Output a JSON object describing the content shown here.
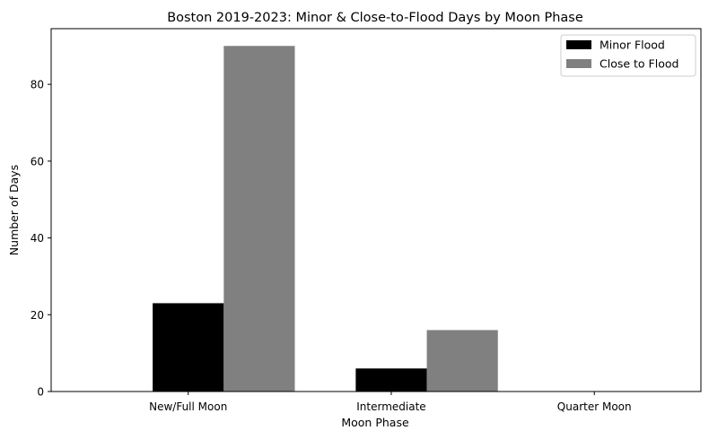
{
  "chart_data": {
    "type": "bar",
    "title": "Boston 2019-2023: Minor & Close-to-Flood Days by Moon Phase",
    "xlabel": "Moon Phase",
    "ylabel": "Number of Days",
    "categories": [
      "New/Full Moon",
      "Intermediate",
      "Quarter Moon"
    ],
    "series": [
      {
        "name": "Minor Flood",
        "values": [
          23,
          6,
          0
        ],
        "color": "#000000"
      },
      {
        "name": "Close to Flood",
        "values": [
          90,
          16,
          0
        ],
        "color": "#808080"
      }
    ],
    "ylim": [
      0,
      94.5
    ],
    "yticks": [
      0,
      20,
      40,
      60,
      80
    ],
    "grid": false,
    "legend": "top-right"
  }
}
